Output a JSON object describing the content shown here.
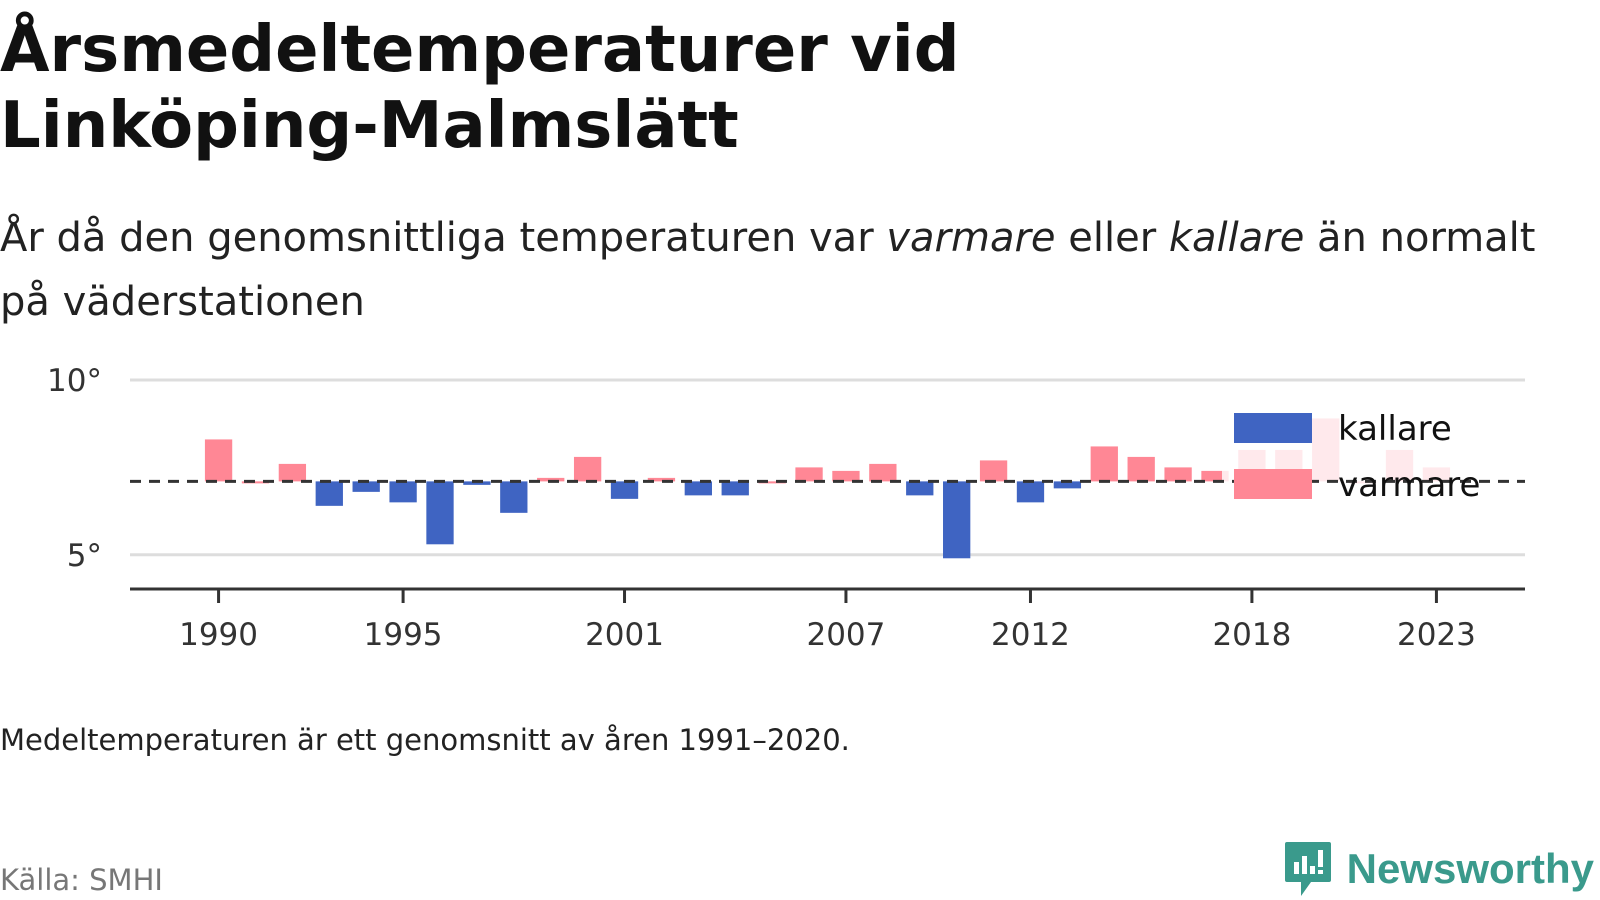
{
  "header": {
    "title": "Årsmedeltemperaturer vid Linköping-Malmslätt",
    "subtitle_part1": "År då den genomsnittliga temperaturen var ",
    "subtitle_em1": "varmare",
    "subtitle_part2": " eller ",
    "subtitle_em2": "kallare",
    "subtitle_part3": " än normalt på väderstationen"
  },
  "footer": {
    "note": "Medeltemperaturen är ett genomsnitt av åren 1991–2020.",
    "source": "Källa: SMHI",
    "brand": "Newsworthy",
    "brand_icon": "newsworthy-logo-icon"
  },
  "colors": {
    "warmer": "#ff8795",
    "colder": "#3f64c2",
    "warmer_faded": "#fde4e7",
    "grid": "#dddddd",
    "axis": "#333333",
    "baseline": "#333333",
    "brand": "#3a9a8c"
  },
  "chart_data": {
    "type": "bar",
    "baseline": 7.1,
    "ylim": [
      4.05,
      10
    ],
    "yticks": [
      5,
      10
    ],
    "ytick_labels": [
      "5°",
      "10°"
    ],
    "xlim": [
      1987.6,
      2025.4
    ],
    "xticks": [
      1990,
      1995,
      2001,
      2007,
      2012,
      2018,
      2023
    ],
    "xtick_labels": [
      "1990",
      "1995",
      "2001",
      "2007",
      "2012",
      "2018",
      "2023"
    ],
    "grid": true,
    "legend": {
      "position": "top-right",
      "entries": [
        {
          "label": "kallare",
          "series": "colder"
        },
        {
          "label": "varmare",
          "series": "warmer"
        }
      ]
    },
    "x": [
      1990,
      1991,
      1992,
      1993,
      1994,
      1995,
      1996,
      1997,
      1998,
      1999,
      2000,
      2001,
      2002,
      2003,
      2004,
      2005,
      2006,
      2007,
      2008,
      2009,
      2010,
      2011,
      2012,
      2013,
      2014,
      2015,
      2016,
      2017,
      2018,
      2019,
      2020,
      2021,
      2022,
      2023
    ],
    "values": [
      8.3,
      7.1,
      7.6,
      6.4,
      6.8,
      6.5,
      5.3,
      7.0,
      6.2,
      7.2,
      7.8,
      6.6,
      7.2,
      6.7,
      6.7,
      7.1,
      7.5,
      7.4,
      7.6,
      6.7,
      4.9,
      7.7,
      6.5,
      6.9,
      8.1,
      7.8,
      7.5,
      7.4,
      8.0,
      8.0,
      8.9,
      7.1,
      8.0,
      7.5
    ]
  }
}
